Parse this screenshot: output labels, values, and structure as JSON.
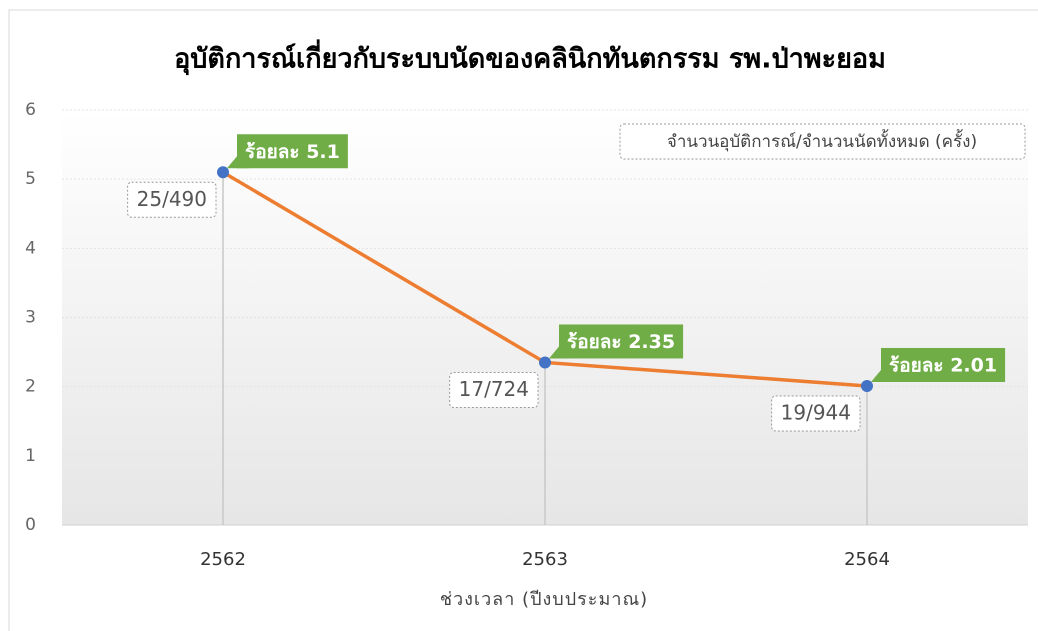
{
  "chart_data": {
    "type": "line",
    "title": "อุบัติการณ์เกี่ยวกับระบบนัดของคลินิกทันตกรรม  รพ.ป่าพะยอม",
    "x_label": "ช่วงเวลา (ปีงบประมาณ)",
    "annotation": "จำนวนอุบัติการณ์/จำนวนนัดทั้งหมด (ครั้ง)",
    "categories": [
      "2562",
      "2563",
      "2564"
    ],
    "series": [
      {
        "name": "ร้อยละ",
        "color": "#ed7d31",
        "marker_color": "#4472c4",
        "values": [
          5.1,
          2.35,
          2.01
        ],
        "value_labels": [
          "ร้อยละ 5.1",
          "ร้อยละ 2.35",
          "ร้อยละ 2.01"
        ],
        "point_labels": [
          "25/490",
          "17/724",
          "19/944"
        ]
      }
    ],
    "ylim": [
      0,
      6
    ],
    "yticks": [
      0,
      1,
      2,
      3,
      4,
      5,
      6
    ],
    "grid": true,
    "label_color": "#70ad47"
  }
}
